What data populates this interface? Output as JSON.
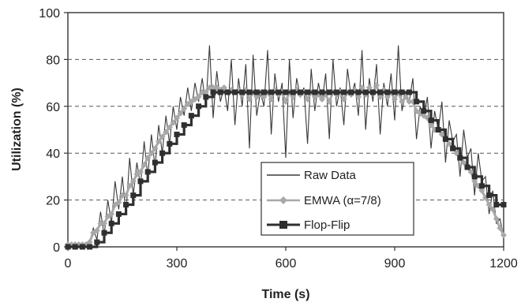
{
  "chart_data": {
    "type": "line",
    "title": "",
    "xlabel": "Time (s)",
    "ylabel": "Utilization (%)",
    "xlim": [
      0,
      1200
    ],
    "ylim": [
      0,
      100
    ],
    "x_ticks": [
      0,
      300,
      600,
      900,
      1200
    ],
    "y_ticks": [
      0,
      20,
      40,
      60,
      80,
      100
    ],
    "grid": "horizontal dashed",
    "legend_position": "lower-right",
    "series": [
      {
        "name": "Raw Data",
        "style": "thin dark line",
        "color": "#3a3a3a",
        "x": [
          0,
          10,
          20,
          30,
          40,
          50,
          60,
          70,
          80,
          90,
          100,
          110,
          120,
          130,
          140,
          150,
          160,
          170,
          180,
          190,
          200,
          210,
          220,
          230,
          240,
          250,
          260,
          270,
          280,
          290,
          300,
          310,
          320,
          330,
          340,
          350,
          360,
          370,
          380,
          390,
          400,
          410,
          420,
          430,
          440,
          450,
          460,
          470,
          480,
          490,
          500,
          510,
          520,
          530,
          540,
          550,
          560,
          570,
          580,
          590,
          600,
          610,
          620,
          630,
          640,
          650,
          660,
          670,
          680,
          690,
          700,
          710,
          720,
          730,
          740,
          750,
          760,
          770,
          780,
          790,
          800,
          810,
          820,
          830,
          840,
          850,
          860,
          870,
          880,
          890,
          900,
          910,
          920,
          930,
          940,
          950,
          960,
          970,
          980,
          990,
          1000,
          1010,
          1020,
          1030,
          1040,
          1050,
          1060,
          1070,
          1080,
          1090,
          1100,
          1110,
          1120,
          1130,
          1140,
          1150,
          1160,
          1170,
          1180,
          1190,
          1200
        ],
        "y": [
          0,
          0,
          0,
          0,
          0,
          0,
          2,
          8,
          3,
          15,
          5,
          20,
          10,
          28,
          16,
          30,
          14,
          38,
          22,
          36,
          26,
          45,
          30,
          48,
          34,
          52,
          40,
          56,
          44,
          60,
          50,
          64,
          56,
          68,
          58,
          70,
          62,
          72,
          60,
          86,
          55,
          75,
          62,
          68,
          58,
          80,
          52,
          72,
          60,
          78,
          42,
          82,
          56,
          66,
          60,
          84,
          48,
          74,
          62,
          70,
          38,
          80,
          55,
          72,
          64,
          68,
          44,
          76,
          58,
          70,
          62,
          74,
          46,
          80,
          60,
          68,
          52,
          76,
          64,
          70,
          56,
          84,
          50,
          72,
          62,
          78,
          48,
          70,
          60,
          74,
          54,
          86,
          58,
          66,
          62,
          72,
          46,
          60,
          55,
          64,
          42,
          58,
          50,
          62,
          36,
          54,
          45,
          48,
          30,
          50,
          38,
          42,
          22,
          40,
          28,
          30,
          14,
          24,
          10,
          12,
          4
        ]
      },
      {
        "name": "EMWA (α=7/8)",
        "style": "light gray line with diamond markers",
        "color": "#a8a8a8",
        "x": [
          0,
          10,
          20,
          30,
          40,
          50,
          60,
          70,
          80,
          90,
          100,
          110,
          120,
          130,
          140,
          150,
          160,
          170,
          180,
          190,
          200,
          210,
          220,
          230,
          240,
          250,
          260,
          270,
          280,
          290,
          300,
          310,
          320,
          330,
          340,
          350,
          360,
          370,
          380,
          390,
          400,
          410,
          420,
          430,
          440,
          450,
          460,
          470,
          480,
          490,
          500,
          510,
          520,
          530,
          540,
          550,
          560,
          570,
          580,
          590,
          600,
          610,
          620,
          630,
          640,
          650,
          660,
          670,
          680,
          690,
          700,
          710,
          720,
          730,
          740,
          750,
          760,
          770,
          780,
          790,
          800,
          810,
          820,
          830,
          840,
          850,
          860,
          870,
          880,
          890,
          900,
          910,
          920,
          930,
          940,
          950,
          960,
          970,
          980,
          990,
          1000,
          1010,
          1020,
          1030,
          1040,
          1050,
          1060,
          1070,
          1080,
          1090,
          1100,
          1110,
          1120,
          1130,
          1140,
          1150,
          1160,
          1170,
          1180,
          1190,
          1200
        ],
        "y": [
          1,
          1,
          1,
          1,
          1,
          1,
          2,
          6,
          7,
          10,
          10,
          13,
          14,
          18,
          19,
          22,
          22,
          26,
          28,
          31,
          32,
          35,
          38,
          40,
          42,
          45,
          47,
          49,
          51,
          53,
          55,
          57,
          59,
          61,
          62,
          63,
          64,
          66,
          66,
          68,
          68,
          68,
          67,
          68,
          66,
          67,
          66,
          67,
          65,
          67,
          63,
          66,
          64,
          66,
          64,
          66,
          63,
          67,
          65,
          66,
          62,
          66,
          64,
          67,
          65,
          66,
          63,
          66,
          64,
          65,
          63,
          65,
          62,
          66,
          65,
          66,
          63,
          66,
          65,
          67,
          64,
          68,
          65,
          68,
          66,
          69,
          64,
          67,
          64,
          66,
          63,
          66,
          62,
          64,
          62,
          62,
          58,
          57,
          56,
          55,
          52,
          50,
          50,
          48,
          46,
          44,
          43,
          40,
          38,
          36,
          34,
          32,
          28,
          26,
          24,
          21,
          18,
          16,
          12,
          8,
          5
        ]
      },
      {
        "name": "Flop-Flip",
        "style": "thick dark stepped line with square markers",
        "color": "#2f2f2f",
        "x": [
          0,
          10,
          20,
          30,
          40,
          50,
          60,
          70,
          80,
          90,
          100,
          110,
          120,
          130,
          140,
          150,
          160,
          170,
          180,
          190,
          200,
          210,
          220,
          230,
          240,
          250,
          260,
          270,
          280,
          290,
          300,
          310,
          320,
          330,
          340,
          350,
          360,
          370,
          380,
          390,
          400,
          410,
          420,
          430,
          440,
          450,
          460,
          470,
          480,
          490,
          500,
          510,
          520,
          530,
          540,
          550,
          560,
          570,
          580,
          590,
          600,
          610,
          620,
          630,
          640,
          650,
          660,
          670,
          680,
          690,
          700,
          710,
          720,
          730,
          740,
          750,
          760,
          770,
          780,
          790,
          800,
          810,
          820,
          830,
          840,
          850,
          860,
          870,
          880,
          890,
          900,
          910,
          920,
          930,
          940,
          950,
          960,
          970,
          980,
          990,
          1000,
          1010,
          1020,
          1030,
          1040,
          1050,
          1060,
          1070,
          1080,
          1090,
          1100,
          1110,
          1120,
          1130,
          1140,
          1150,
          1160,
          1170,
          1180,
          1190,
          1200
        ],
        "y": [
          0,
          0,
          0,
          0,
          0,
          0,
          0,
          0,
          2,
          2,
          6,
          6,
          10,
          10,
          14,
          14,
          18,
          18,
          22,
          22,
          28,
          28,
          32,
          32,
          36,
          36,
          40,
          40,
          44,
          44,
          48,
          48,
          52,
          52,
          56,
          56,
          60,
          60,
          64,
          64,
          66,
          66,
          66,
          66,
          66,
          66,
          66,
          66,
          66,
          66,
          66,
          66,
          66,
          66,
          66,
          66,
          66,
          66,
          66,
          66,
          66,
          66,
          66,
          66,
          66,
          66,
          66,
          66,
          66,
          66,
          66,
          66,
          66,
          66,
          66,
          66,
          66,
          66,
          66,
          66,
          66,
          66,
          66,
          66,
          66,
          66,
          66,
          66,
          66,
          66,
          66,
          66,
          66,
          66,
          66,
          66,
          62,
          62,
          58,
          58,
          54,
          54,
          50,
          50,
          46,
          46,
          42,
          42,
          38,
          38,
          34,
          34,
          30,
          30,
          26,
          26,
          22,
          22,
          18,
          18,
          18
        ]
      }
    ]
  }
}
